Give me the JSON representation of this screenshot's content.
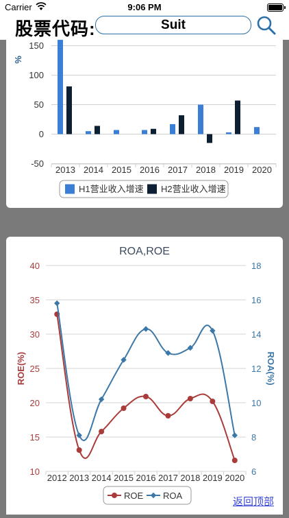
{
  "status_bar": {
    "carrier": "Carrier",
    "time": "9:06 PM"
  },
  "header": {
    "label": "股票代码:",
    "search_value": "Suit"
  },
  "chart_data": [
    {
      "type": "bar",
      "title": "",
      "categories": [
        "2013",
        "2014",
        "2015",
        "2016",
        "2017",
        "2018",
        "2019",
        "2020"
      ],
      "series": [
        {
          "name": "H1营业收入增速",
          "color": "#3a7fd5",
          "values": [
            160,
            5,
            7,
            7,
            17,
            50,
            3,
            12
          ]
        },
        {
          "name": "H2营业收入增速",
          "color": "#0d1f33",
          "values": [
            81,
            14,
            null,
            9,
            32,
            -15,
            57,
            null
          ]
        }
      ],
      "ylabel": "%",
      "yticks": [
        "150",
        "100",
        "50",
        "0",
        "-50"
      ],
      "ylim": [
        -50,
        160
      ],
      "legend_position": "bottom"
    },
    {
      "type": "line",
      "title": "ROA,ROE",
      "categories": [
        "2012",
        "2013",
        "2014",
        "2015",
        "2016",
        "2017",
        "2018",
        "2019",
        "2020"
      ],
      "series": [
        {
          "name": "ROE",
          "axis": "left",
          "color": "#aa3b3b",
          "values": [
            32.9,
            13.1,
            15.8,
            19.2,
            20.9,
            18.1,
            20.6,
            20.2,
            11.6
          ]
        },
        {
          "name": "ROA",
          "axis": "right",
          "color": "#3b77a7",
          "values": [
            15.8,
            8.1,
            10.2,
            12.5,
            14.3,
            12.9,
            13.2,
            14.2,
            8.1
          ]
        }
      ],
      "ylabel_left": "ROE(%)",
      "ylabel_right": "ROA(%)",
      "yticks_left": [
        "40",
        "35",
        "30",
        "25",
        "20",
        "15",
        "10"
      ],
      "yticks_right": [
        "18",
        "16",
        "14",
        "12",
        "10",
        "8",
        "6"
      ],
      "ylim_left": [
        10,
        40
      ],
      "ylim_right": [
        6,
        18
      ],
      "legend_position": "bottom"
    }
  ],
  "footer": {
    "back_to_top": "返回顶部"
  }
}
